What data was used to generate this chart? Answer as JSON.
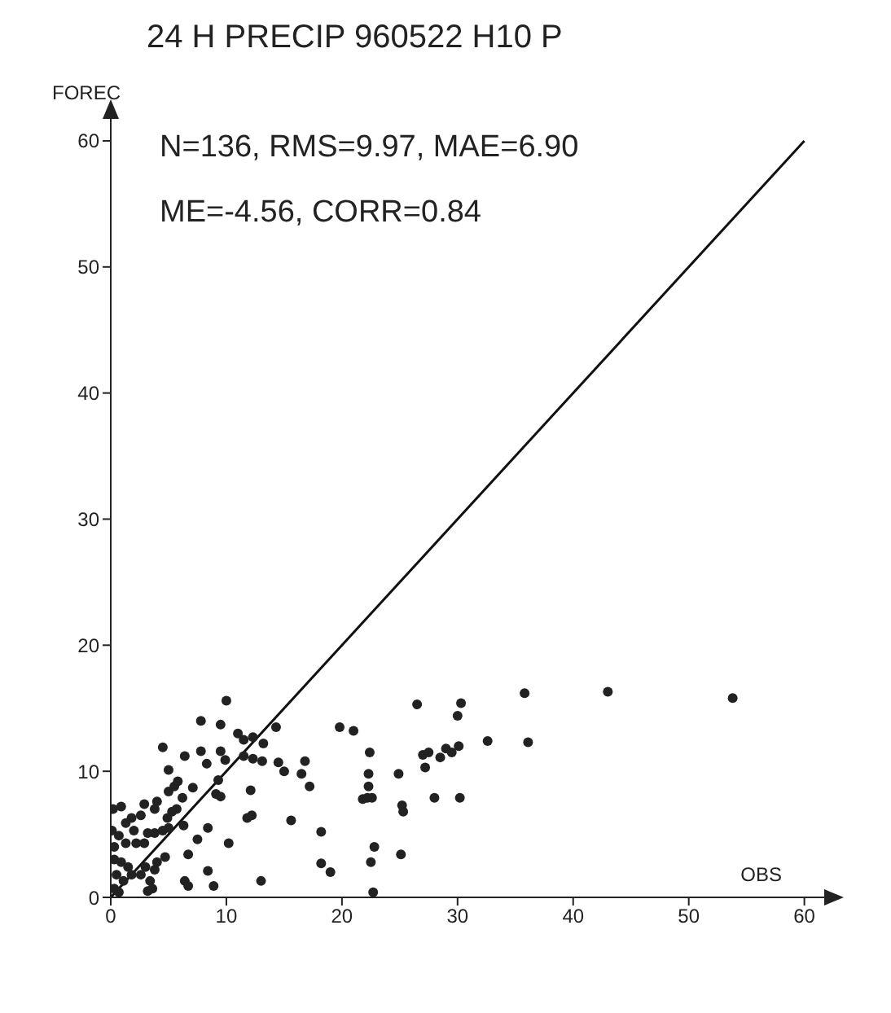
{
  "chart_data": {
    "type": "scatter",
    "title": "24 H PRECIP 960522 H10 P",
    "xlabel": "OBS",
    "ylabel": "FOREC",
    "annotations": [
      "N=136, RMS=9.97, MAE=6.90",
      "ME=-4.56, CORR=0.84"
    ],
    "xlim": [
      0,
      62
    ],
    "ylim": [
      0,
      62
    ],
    "xticks": [
      0,
      10,
      20,
      30,
      40,
      50,
      60
    ],
    "yticks": [
      0,
      10,
      20,
      30,
      40,
      50,
      60
    ],
    "marker": "circle",
    "series": [
      {
        "color": "#222222",
        "x": [
          10,
          7.8,
          9.5,
          4.5,
          6.4,
          7.8,
          9.5,
          11,
          11.5,
          12.3,
          13.2,
          14.3,
          8.3,
          9.9,
          11.5,
          12.3,
          13.1,
          14.5,
          15,
          16.5,
          16.8,
          17.2,
          5,
          5.8,
          5,
          5.5,
          7.1,
          6.2,
          9.1,
          9.5,
          9.3,
          12.1,
          12.2,
          11.8,
          15.6,
          10.2,
          8.4,
          7.5,
          6.7,
          6.4,
          6.7,
          8.4,
          8.9,
          13,
          18.2,
          18.2,
          19,
          19.8,
          21,
          22.4,
          22.3,
          22.3,
          22.2,
          22.6,
          21.8,
          22.8,
          22.5,
          22.7,
          24.9,
          25.2,
          25.3,
          25.1,
          26.5,
          27,
          27.2,
          27.5,
          28.5,
          29,
          28,
          30.2,
          30.3,
          30,
          30.1,
          29.5,
          35.8,
          43,
          53.8,
          32.6,
          36.1,
          0.2,
          0.9,
          0.1,
          0.7,
          1.3,
          1.8,
          2,
          2.6,
          2.9,
          3.8,
          4,
          2.9,
          2.2,
          1.3,
          3.2,
          3.8,
          4.5,
          4.9,
          5.3,
          5.7,
          5,
          6.3,
          4.7,
          0.3,
          0.9,
          1.5,
          0.5,
          1.1,
          0.3,
          0.7,
          1.8,
          2.6,
          3.4,
          3.8,
          4,
          3.2,
          3.6,
          0.3,
          3
        ],
        "values": [
          15.6,
          14,
          13.7,
          11.9,
          11.2,
          11.6,
          11.6,
          13,
          12.5,
          12.7,
          12.2,
          13.5,
          10.6,
          10.9,
          11.2,
          11,
          10.8,
          10.7,
          10,
          9.8,
          10.8,
          8.8,
          10.1,
          9.2,
          8.4,
          8.8,
          8.7,
          7.9,
          8.2,
          8,
          9.3,
          8.5,
          6.5,
          6.3,
          6.1,
          4.3,
          5.5,
          4.6,
          3.4,
          1.3,
          0.9,
          2.1,
          0.9,
          1.3,
          5.2,
          2.7,
          2,
          13.5,
          13.2,
          11.5,
          9.8,
          8.8,
          7.9,
          7.9,
          7.8,
          4,
          2.8,
          0.4,
          9.8,
          7.3,
          6.8,
          3.4,
          15.3,
          11.3,
          10.3,
          11.5,
          11.1,
          11.8,
          7.9,
          7.9,
          15.4,
          14.4,
          12,
          11.5,
          16.2,
          16.3,
          15.8,
          12.4,
          12.3,
          7,
          7.2,
          5.3,
          4.9,
          5.9,
          6.3,
          5.3,
          6.5,
          7.4,
          7,
          7.6,
          4.3,
          4.3,
          4.3,
          5.1,
          5.1,
          5.3,
          6.3,
          6.8,
          7,
          5.5,
          5.7,
          3.2,
          3,
          2.8,
          2.4,
          1.8,
          1.3,
          0.7,
          0.4,
          1.8,
          1.8,
          1.3,
          2.2,
          2.8,
          0.5,
          0.7,
          4,
          2.4
        ]
      },
      {
        "type": "line",
        "color": "#111111",
        "x": [
          0,
          60
        ],
        "values": [
          0,
          60
        ],
        "marker": "none",
        "line_style": "solid"
      }
    ]
  }
}
